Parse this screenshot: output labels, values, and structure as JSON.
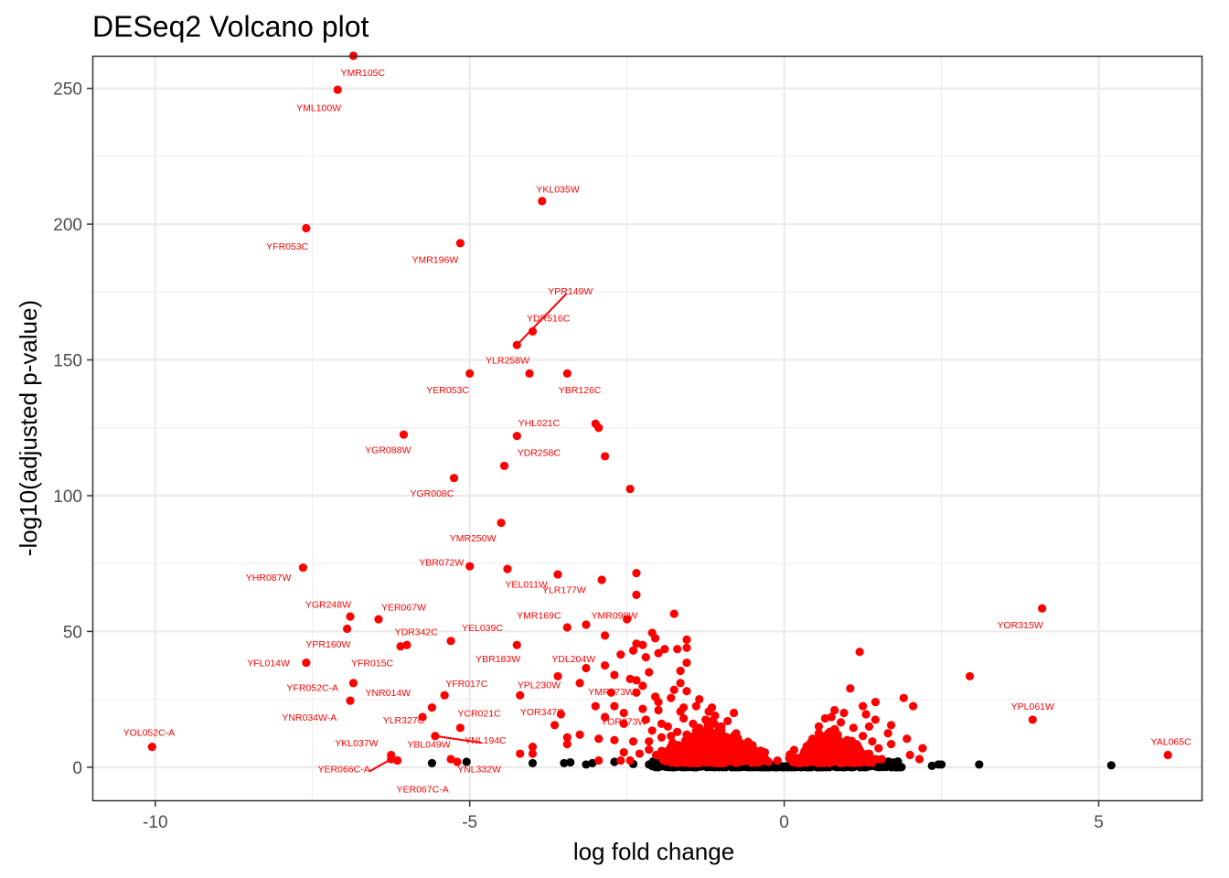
{
  "chart_data": {
    "type": "scatter",
    "title": "DESeq2 Volcano plot",
    "xlabel": "log fold change",
    "ylabel": "-log10(adjusted p-value)",
    "xlim": [
      -11,
      6.65
    ],
    "ylim": [
      -12.5,
      262
    ],
    "x_ticks": [
      -10,
      -5,
      0,
      5
    ],
    "y_ticks": [
      0,
      50,
      100,
      150,
      200,
      250
    ],
    "x_tick_labels": [
      "-10",
      "-5",
      "0",
      "5"
    ],
    "y_tick_labels": [
      "0",
      "50",
      "100",
      "150",
      "200",
      "250"
    ],
    "grid": true,
    "legend": "none",
    "colors": {
      "significant": "#ff0000",
      "not_significant": "#000000",
      "grid": "#ebebeb",
      "panel_border": "#333333"
    },
    "labeled_points": [
      {
        "label": "YMR105C",
        "x": -6.85,
        "y": 262,
        "lx": -6.7,
        "ly": 256
      },
      {
        "label": "YML100W",
        "x": -7.1,
        "y": 249.5,
        "lx": -7.4,
        "ly": 243
      },
      {
        "label": "YKL035W",
        "x": -3.85,
        "y": 208.5,
        "lx": -3.6,
        "ly": 213
      },
      {
        "label": "YFR053C",
        "x": -7.6,
        "y": 198.5,
        "lx": -7.9,
        "ly": 192
      },
      {
        "label": "YMR196W",
        "x": -5.15,
        "y": 193,
        "lx": -5.55,
        "ly": 187
      },
      {
        "label": "YPR149W",
        "x": -4.25,
        "y": 155.5,
        "lx": -3.4,
        "ly": 175.5,
        "leader": true
      },
      {
        "label": "YDR516C",
        "x": -4.0,
        "y": 160.5,
        "lx": -3.75,
        "ly": 165.5
      },
      {
        "label": "YLR258W",
        "x": -4.05,
        "y": 145,
        "lx": -4.4,
        "ly": 150
      },
      {
        "label": "YER053C",
        "x": -5.0,
        "y": 145,
        "lx": -5.35,
        "ly": 139
      },
      {
        "label": "YBR126C",
        "x": -3.45,
        "y": 145,
        "lx": -3.25,
        "ly": 139
      },
      {
        "label": "YHL021C",
        "x": -4.25,
        "y": 122,
        "lx": -3.9,
        "ly": 127
      },
      {
        "label": "YGR088W",
        "x": -6.05,
        "y": 122.5,
        "lx": -6.3,
        "ly": 117
      },
      {
        "label": "YDR258C",
        "x": -4.45,
        "y": 111,
        "lx": -3.9,
        "ly": 116
      },
      {
        "label": "YGR008C",
        "x": -5.25,
        "y": 106.5,
        "lx": -5.6,
        "ly": 101
      },
      {
        "label": "YMR250W",
        "x": -4.5,
        "y": 90,
        "lx": -4.95,
        "ly": 84.5
      },
      {
        "label": "YBR072W",
        "x": -5.0,
        "y": 74,
        "lx": -5.45,
        "ly": 75.5
      },
      {
        "label": "YEL011W",
        "x": -4.4,
        "y": 73,
        "lx": -4.1,
        "ly": 67.5
      },
      {
        "label": "YLR177W",
        "x": -2.9,
        "y": 69,
        "lx": -3.5,
        "ly": 65.5
      },
      {
        "label": "YHR087W",
        "x": -7.65,
        "y": 73.5,
        "lx": -8.2,
        "ly": 70
      },
      {
        "label": "YGR248W",
        "x": -6.9,
        "y": 55.5,
        "lx": -7.25,
        "ly": 60
      },
      {
        "label": "YER067W",
        "x": -6.45,
        "y": 54.5,
        "lx": -6.05,
        "ly": 59
      },
      {
        "label": "YMR169C",
        "x": -3.45,
        "y": 51.5,
        "lx": -3.9,
        "ly": 56
      },
      {
        "label": "YMR090W",
        "x": -2.5,
        "y": 54.5,
        "lx": -2.7,
        "ly": 56
      },
      {
        "label": "YOR315W",
        "x": 4.1,
        "y": 58.5,
        "lx": 3.75,
        "ly": 52.5
      },
      {
        "label": "YEL039C",
        "x": -5.3,
        "y": 46.5,
        "lx": -4.8,
        "ly": 51.5
      },
      {
        "label": "YDR342C",
        "x": -6.1,
        "y": 44.5,
        "lx": -5.85,
        "ly": 50
      },
      {
        "label": "YPR160W",
        "x": -6.95,
        "y": 51,
        "lx": -7.25,
        "ly": 45.5
      },
      {
        "label": "YBR183W",
        "x": -4.25,
        "y": 45,
        "lx": -4.55,
        "ly": 40
      },
      {
        "label": "YDL204W",
        "x": -2.85,
        "y": 48.5,
        "lx": -3.35,
        "ly": 40
      },
      {
        "label": "YFL014W",
        "x": -7.6,
        "y": 38.5,
        "lx": -8.2,
        "ly": 38.5
      },
      {
        "label": "YFR015C",
        "x": -6.0,
        "y": 45,
        "lx": -6.55,
        "ly": 38.5
      },
      {
        "label": "YFR052C-A",
        "x": -6.85,
        "y": 31,
        "lx": -7.5,
        "ly": 29.5
      },
      {
        "label": "YFR017C",
        "x": -5.4,
        "y": 26.5,
        "lx": -5.05,
        "ly": 31
      },
      {
        "label": "YPL230W",
        "x": -4.2,
        "y": 26.5,
        "lx": -3.9,
        "ly": 30.5
      },
      {
        "label": "YMR173W",
        "x": -2.75,
        "y": 27.5,
        "lx": -2.75,
        "ly": 28
      },
      {
        "label": "YNR014W",
        "x": -5.6,
        "y": 22,
        "lx": -6.3,
        "ly": 27.5
      },
      {
        "label": "YNR034W-A",
        "x": -6.9,
        "y": 24.5,
        "lx": -7.55,
        "ly": 18.5
      },
      {
        "label": "YLR327C",
        "x": -5.75,
        "y": 18.5,
        "lx": -6.05,
        "ly": 17.5
      },
      {
        "label": "YCR021C",
        "x": -5.15,
        "y": 14.5,
        "lx": -4.85,
        "ly": 20
      },
      {
        "label": "YOR347C",
        "x": -3.55,
        "y": 19.5,
        "lx": -3.85,
        "ly": 20.5
      },
      {
        "label": "YOR273W",
        "x": -2.55,
        "y": 16,
        "lx": -2.55,
        "ly": 17
      },
      {
        "label": "YPL061W",
        "x": 3.95,
        "y": 17.5,
        "lx": 3.95,
        "ly": 22.5
      },
      {
        "label": "YOL052C-A",
        "x": -10.05,
        "y": 7.5,
        "lx": -10.1,
        "ly": 13
      },
      {
        "label": "YNL194C",
        "x": -5.55,
        "y": 11.5,
        "lx": -4.75,
        "ly": 10,
        "leader": true
      },
      {
        "label": "YKL037W",
        "x": -6.25,
        "y": 4.5,
        "lx": -6.8,
        "ly": 9
      },
      {
        "label": "YBL049W",
        "x": -5.3,
        "y": 3,
        "lx": -5.65,
        "ly": 8.5
      },
      {
        "label": "YER066C-A",
        "x": -6.25,
        "y": 3,
        "lx": -7.0,
        "ly": -0.5,
        "leader": true
      },
      {
        "label": "YNL332W",
        "x": -5.2,
        "y": 2,
        "lx": -4.85,
        "ly": -0.5
      },
      {
        "label": "YER067C-A",
        "x": -6.15,
        "y": 2.5,
        "lx": -5.75,
        "ly": -8
      },
      {
        "label": "YAL065C",
        "x": 6.1,
        "y": 4.5,
        "lx": 6.15,
        "ly": 9.5
      }
    ],
    "other_red_points": [
      [
        -3.0,
        126.5
      ],
      [
        -2.95,
        125
      ],
      [
        -2.85,
        114.5
      ],
      [
        -2.45,
        102.5
      ],
      [
        -3.6,
        71
      ],
      [
        -2.35,
        71.5
      ],
      [
        -2.35,
        63.5
      ],
      [
        -1.75,
        56.5
      ],
      [
        -3.15,
        52.5
      ],
      [
        -2.1,
        49.5
      ],
      [
        -2.05,
        47.5
      ],
      [
        -1.55,
        47
      ],
      [
        -1.55,
        44
      ],
      [
        -1.7,
        43.5
      ],
      [
        -1.9,
        43.5
      ],
      [
        -2.35,
        45.5
      ],
      [
        -2.25,
        45
      ],
      [
        -2.4,
        43
      ],
      [
        -2.2,
        40.5
      ],
      [
        -2.0,
        42
      ],
      [
        -2.6,
        41.5
      ],
      [
        -2.85,
        37.5
      ],
      [
        -3.15,
        36.5
      ],
      [
        -2.7,
        34
      ],
      [
        -2.45,
        32.5
      ],
      [
        -2.35,
        32
      ],
      [
        -3.6,
        33.5
      ],
      [
        -3.25,
        31
      ],
      [
        -2.15,
        35
      ],
      [
        -1.65,
        35.5
      ],
      [
        -1.55,
        38.5
      ],
      [
        -1.65,
        31
      ],
      [
        -1.75,
        28.5
      ],
      [
        -1.55,
        28
      ],
      [
        -1.8,
        25.5
      ],
      [
        -1.35,
        25
      ],
      [
        -2.25,
        30
      ],
      [
        -2.35,
        27.5
      ],
      [
        -2.05,
        26
      ],
      [
        -2.7,
        22.5
      ],
      [
        -2.55,
        20
      ],
      [
        -2.85,
        18.5
      ],
      [
        -3.0,
        22.5
      ],
      [
        -2.0,
        24
      ],
      [
        -1.6,
        22
      ],
      [
        -1.15,
        22
      ],
      [
        -0.8,
        20
      ],
      [
        -2.25,
        21.5
      ],
      [
        -2.2,
        17.5
      ],
      [
        -1.95,
        16
      ],
      [
        -2.1,
        13.5
      ],
      [
        -1.8,
        11.5
      ],
      [
        -1.35,
        14.5
      ],
      [
        -1.0,
        15
      ],
      [
        -2.15,
        9.5
      ],
      [
        -2.4,
        9.5
      ],
      [
        -2.7,
        10
      ],
      [
        -3.25,
        12
      ],
      [
        -3.45,
        11
      ],
      [
        -3.65,
        15.5
      ],
      [
        -3.45,
        8.5
      ],
      [
        -2.95,
        10.5
      ],
      [
        -2.55,
        5.5
      ],
      [
        -2.3,
        5
      ],
      [
        -2.6,
        2.5
      ],
      [
        -2.95,
        2.5
      ],
      [
        -4.0,
        7.5
      ],
      [
        -4.0,
        5
      ],
      [
        -4.2,
        5
      ],
      [
        -2.45,
        2.5
      ],
      [
        -2.15,
        6.5
      ],
      [
        -1.8,
        6
      ],
      [
        -1.45,
        6.5
      ],
      [
        -1.2,
        5
      ],
      [
        -0.95,
        5.5
      ],
      [
        -0.8,
        4.5
      ],
      [
        -0.65,
        4
      ],
      [
        -0.5,
        3
      ],
      [
        -0.35,
        2.5
      ],
      [
        -1.85,
        15
      ],
      [
        -1.6,
        18
      ],
      [
        -1.25,
        17.5
      ],
      [
        -1.0,
        13.5
      ],
      [
        -0.9,
        10.5
      ],
      [
        -0.7,
        9
      ],
      [
        -1.1,
        9
      ],
      [
        -1.5,
        10
      ],
      [
        -1.75,
        8
      ],
      [
        -1.3,
        8
      ],
      [
        -1.55,
        12
      ],
      [
        -1.3,
        11.5
      ],
      [
        -1.15,
        12
      ],
      [
        -0.85,
        7.5
      ],
      [
        -0.6,
        6.5
      ],
      [
        -0.45,
        5
      ],
      [
        -2.0,
        21
      ],
      [
        -1.65,
        20.5
      ],
      [
        -1.45,
        16
      ],
      [
        -1.1,
        19
      ],
      [
        -0.9,
        17
      ],
      [
        -1.4,
        22.5
      ],
      [
        -1.2,
        20.5
      ],
      [
        -0.55,
        5.5
      ],
      [
        -0.25,
        2
      ],
      [
        -0.3,
        3
      ],
      [
        -0.4,
        4
      ],
      [
        -1.95,
        11
      ],
      [
        -1.7,
        13
      ],
      [
        -1.4,
        13.5
      ],
      [
        1.2,
        42.5
      ],
      [
        1.05,
        29
      ],
      [
        2.95,
        33.5
      ],
      [
        1.25,
        22.5
      ],
      [
        1.3,
        19.5
      ],
      [
        1.45,
        24
      ],
      [
        1.45,
        17.5
      ],
      [
        1.35,
        15
      ],
      [
        1.25,
        11.5
      ],
      [
        1.1,
        14.5
      ],
      [
        1.9,
        25.5
      ],
      [
        2.05,
        22.5
      ],
      [
        1.7,
        15.5
      ],
      [
        1.65,
        12.5
      ],
      [
        1.7,
        8.5
      ],
      [
        1.95,
        10.5
      ],
      [
        2.2,
        7
      ],
      [
        2.15,
        3
      ],
      [
        2.0,
        4.5
      ],
      [
        1.5,
        7
      ],
      [
        1.35,
        5
      ],
      [
        1.2,
        4
      ],
      [
        1.05,
        6
      ],
      [
        0.9,
        5.5
      ],
      [
        0.95,
        7.5
      ],
      [
        1.0,
        10
      ],
      [
        0.85,
        12
      ],
      [
        0.8,
        14
      ],
      [
        0.9,
        16.5
      ],
      [
        0.75,
        18.5
      ],
      [
        0.95,
        20
      ],
      [
        0.8,
        21
      ],
      [
        0.65,
        18
      ],
      [
        0.55,
        15
      ],
      [
        0.45,
        10.5
      ],
      [
        0.55,
        12.5
      ],
      [
        0.7,
        10
      ],
      [
        0.75,
        7.5
      ],
      [
        0.6,
        6
      ],
      [
        0.45,
        5.5
      ],
      [
        0.35,
        4
      ],
      [
        0.5,
        3.5
      ],
      [
        0.3,
        2.5
      ],
      [
        0.25,
        1.5
      ],
      [
        0.6,
        8
      ],
      [
        0.4,
        7
      ],
      [
        0.7,
        12.5
      ],
      [
        0.85,
        9
      ],
      [
        1.15,
        8
      ],
      [
        1.4,
        9.5
      ],
      [
        1.55,
        3
      ]
    ],
    "black_points": [
      [
        -5.6,
        1.5
      ],
      [
        -5.05,
        2
      ],
      [
        -4.0,
        1.5
      ],
      [
        -3.5,
        1.5
      ],
      [
        -3.05,
        1.5
      ],
      [
        -3.15,
        1
      ],
      [
        -2.7,
        2
      ],
      [
        -2.15,
        1
      ],
      [
        -2.0,
        1.5
      ],
      [
        -1.75,
        1
      ],
      [
        -1.5,
        1.5
      ],
      [
        -1.2,
        1
      ],
      [
        -0.95,
        1.5
      ],
      [
        -0.7,
        0.5
      ],
      [
        -0.5,
        1
      ],
      [
        -0.3,
        0.5
      ],
      [
        -0.15,
        0.2
      ],
      [
        0.0,
        0.1
      ],
      [
        0.15,
        0.3
      ],
      [
        0.35,
        0.6
      ],
      [
        0.55,
        1
      ],
      [
        0.8,
        1.2
      ],
      [
        1.05,
        1
      ],
      [
        1.3,
        1.2
      ],
      [
        1.55,
        1.5
      ],
      [
        1.75,
        1
      ],
      [
        2.35,
        0.5
      ],
      [
        2.45,
        1
      ],
      [
        2.5,
        1
      ],
      [
        3.1,
        1
      ],
      [
        5.2,
        0.7
      ],
      [
        -3.4,
        1.8
      ],
      [
        -2.4,
        1.2
      ],
      [
        -1.3,
        0.5
      ],
      [
        -0.85,
        0.8
      ],
      [
        0.65,
        0.5
      ],
      [
        1.15,
        0.5
      ],
      [
        1.45,
        1
      ],
      [
        -1.85,
        0.5
      ],
      [
        -0.4,
        0.3
      ],
      [
        0.25,
        0.4
      ],
      [
        0.45,
        0.8
      ]
    ],
    "black_band": {
      "x_range": [
        -2.1,
        1.9
      ],
      "y_max": 2.2
    },
    "red_cluster_left": {
      "x_center": -1.15,
      "x_spread": 0.55,
      "y_max": 17
    },
    "red_cluster_right": {
      "x_center": 0.75,
      "x_spread": 0.42,
      "y_max": 14
    }
  }
}
